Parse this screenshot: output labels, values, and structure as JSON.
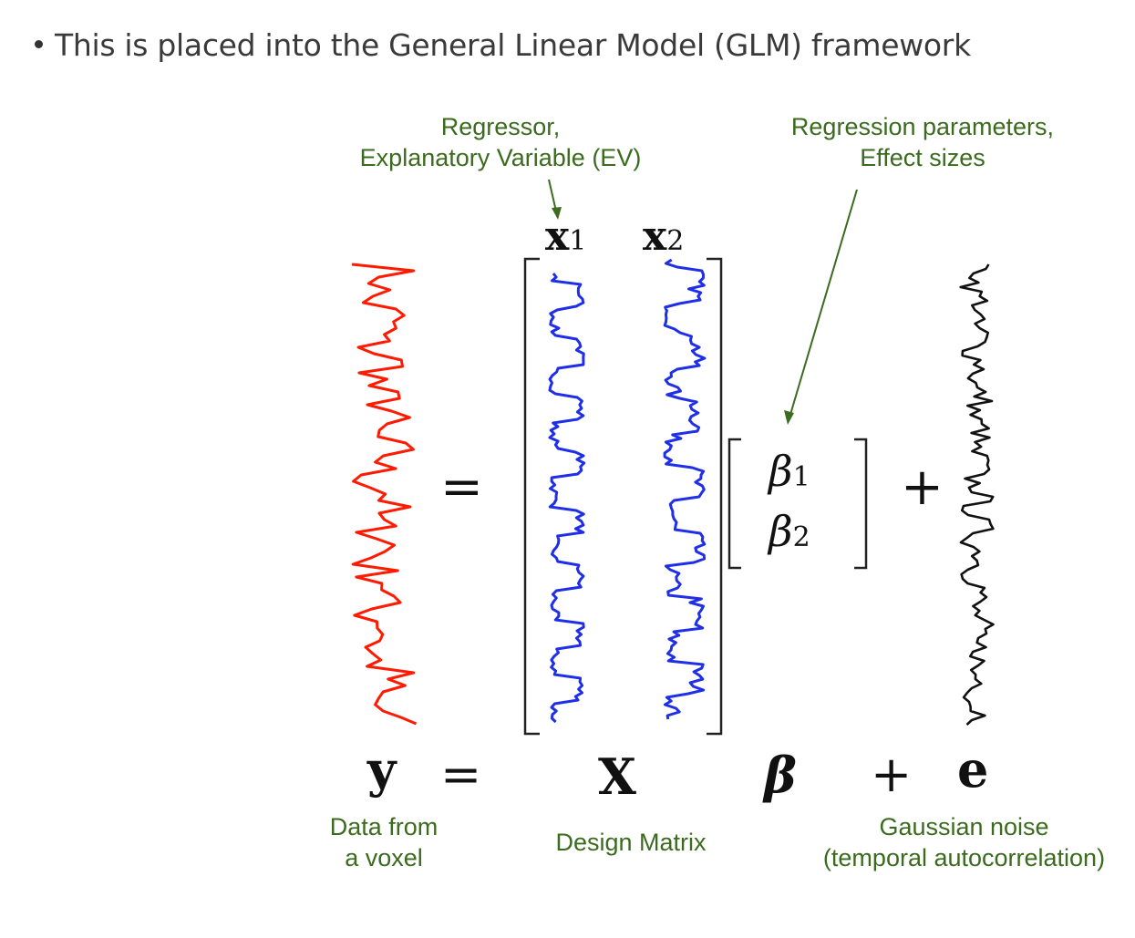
{
  "bullet": {
    "text": "This is placed into the General Linear Model (GLM) framework"
  },
  "annotations": {
    "regressor_line1": "Regressor,",
    "regressor_line2": "Explanatory Variable (EV)",
    "params_line1": "Regression parameters,",
    "params_line2": "Effect sizes",
    "data_line1": "Data from",
    "data_line2": "a voxel",
    "design": "Design Matrix",
    "noise_line1": "Gaussian noise",
    "noise_line2": "(temporal autocorrelation)"
  },
  "matrix_labels": {
    "x1": "x",
    "x1_sub": "1",
    "x2": "x",
    "x2_sub": "2",
    "beta1": "β",
    "beta1_sub": "1",
    "beta2": "β",
    "beta2_sub": "2"
  },
  "symbols": {
    "equals_top": "=",
    "plus_top": "+",
    "y": "y",
    "equals_bottom": "=",
    "X": "X",
    "beta": "β",
    "plus_bottom": "+",
    "e": "e"
  },
  "colors": {
    "signal": "#ff1a00",
    "regressor": "#1f2fe8",
    "noise": "#111111",
    "annotation": "#3b6b1e"
  }
}
